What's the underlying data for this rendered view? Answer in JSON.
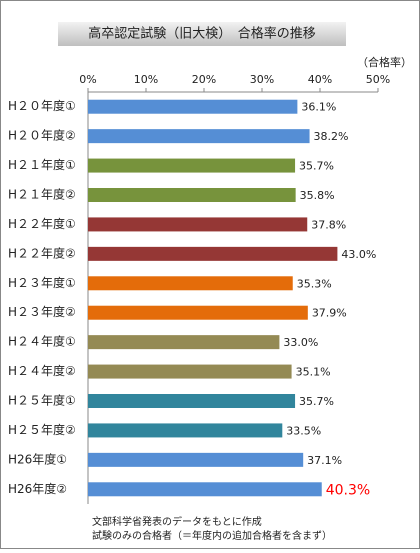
{
  "chart_data": {
    "type": "barh",
    "title": "高卒認定試験（旧大検）　合格率の推移",
    "unit_label": "（合格率）",
    "categories": [
      "H２０年度①",
      "H２０年度②",
      "H２１年度①",
      "H２１年度②",
      "H２２年度①",
      "H２２年度②",
      "H２３年度①",
      "H２３年度②",
      "H２４年度①",
      "H２４年度②",
      "H２５年度①",
      "H２５年度②",
      "H26年度①",
      "H26年度②"
    ],
    "values": [
      36.1,
      38.2,
      35.7,
      35.8,
      37.8,
      43.0,
      35.3,
      37.9,
      33.0,
      35.1,
      35.7,
      33.5,
      37.1,
      40.3
    ],
    "value_labels": [
      "36.1%",
      "38.2%",
      "35.7%",
      "35.8%",
      "37.8%",
      "43.0%",
      "35.3%",
      "37.9%",
      "33.0%",
      "35.1%",
      "35.7%",
      "33.5%",
      "37.1%",
      "40.3%"
    ],
    "colors": [
      "#558ed5",
      "#558ed5",
      "#77933c",
      "#77933c",
      "#953735",
      "#953735",
      "#e46c0a",
      "#e46c0a",
      "#948a54",
      "#948a54",
      "#31859c",
      "#31859c",
      "#558ed5",
      "#558ed5"
    ],
    "highlight_index": 13,
    "highlight_color": "#ff0000",
    "xlim": [
      0,
      50
    ],
    "xticks": [
      {
        "value": 0,
        "label": "0%"
      },
      {
        "value": 10,
        "label": "10%"
      },
      {
        "value": 20,
        "label": "20%"
      },
      {
        "value": 30,
        "label": "30%"
      },
      {
        "value": 40,
        "label": "40%"
      },
      {
        "value": 50,
        "label": "50%"
      }
    ],
    "grid": false,
    "notes": [
      "文部科学省発表のデータをもとに作成",
      "試験のみの合格者（＝年度内の追加合格者を含まず）"
    ]
  }
}
